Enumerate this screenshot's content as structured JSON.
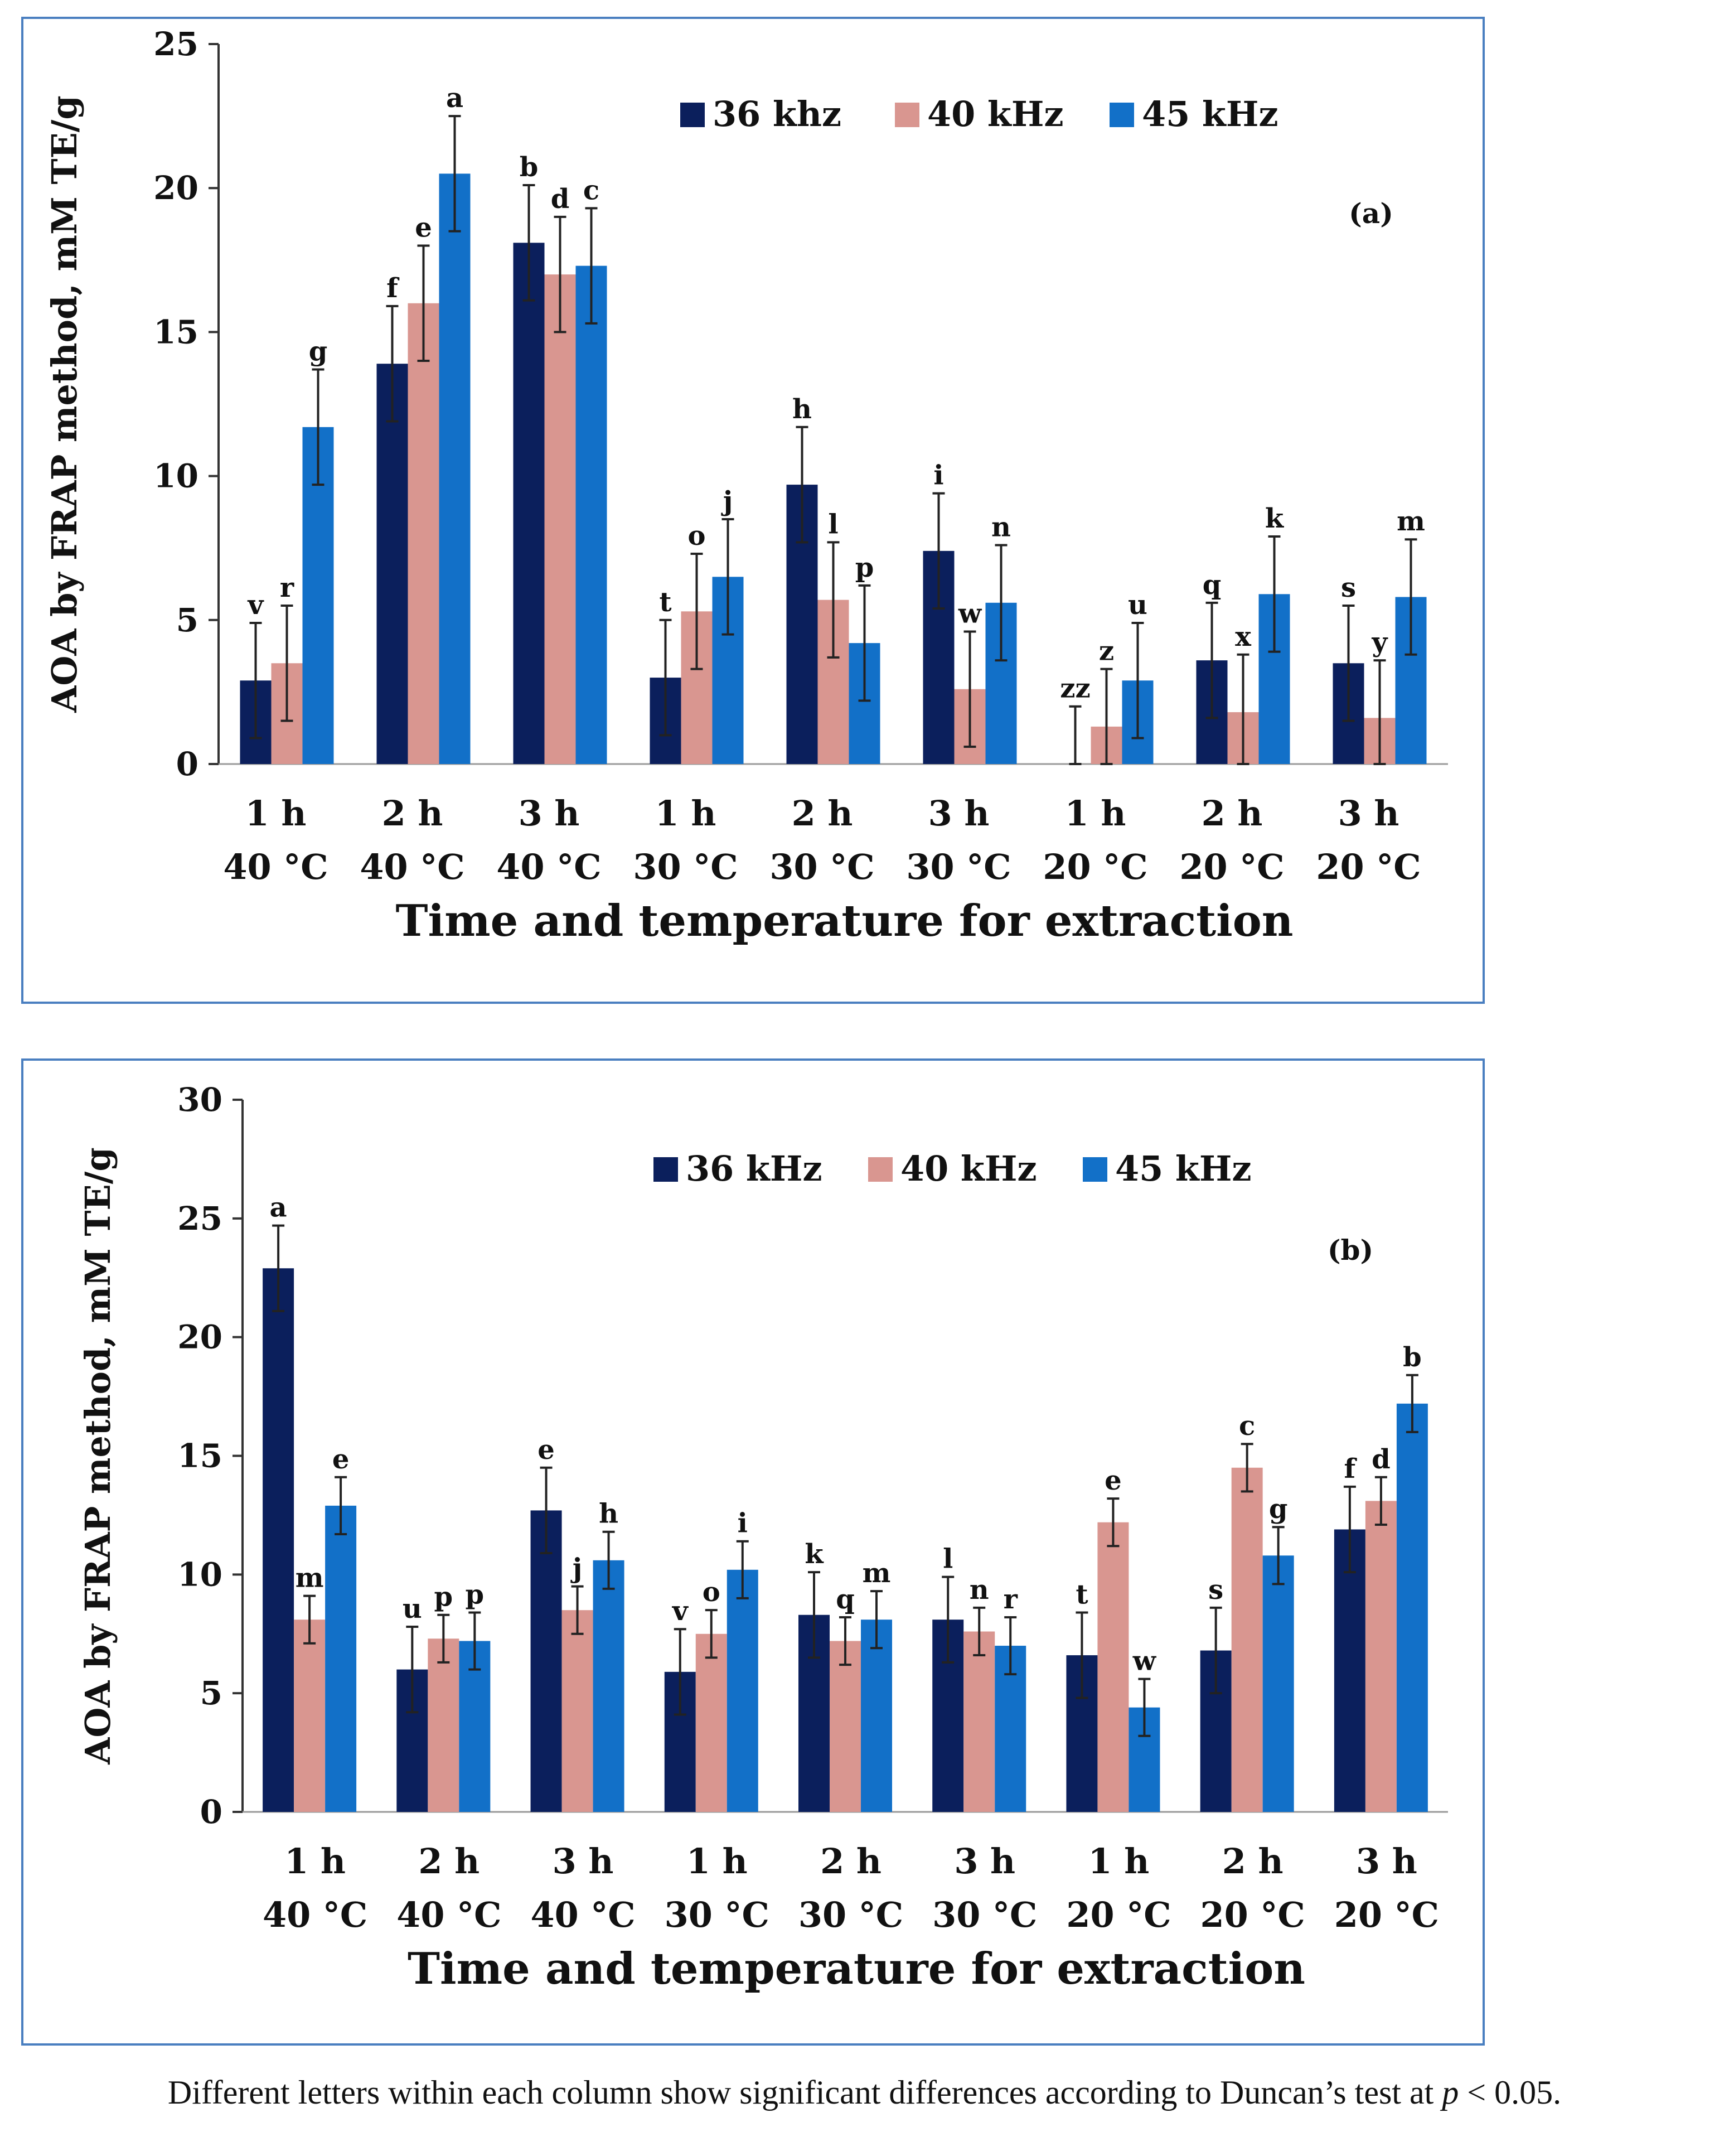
{
  "colors": {
    "s36": "#0b1f5c",
    "s40": "#d99690",
    "s45": "#1270c8",
    "frame": "#4a7fc0"
  },
  "categories": [
    {
      "time": "1 h",
      "temp": "40 °C"
    },
    {
      "time": "2 h",
      "temp": "40 °C"
    },
    {
      "time": "3 h",
      "temp": "40 °C"
    },
    {
      "time": "1 h",
      "temp": "30 °C"
    },
    {
      "time": "2 h",
      "temp": "30 °C"
    },
    {
      "time": "3 h",
      "temp": "30 °C"
    },
    {
      "time": "1 h",
      "temp": "20 °C"
    },
    {
      "time": "2 h",
      "temp": "20 °C"
    },
    {
      "time": "3 h",
      "temp": "20 °C"
    }
  ],
  "chart_data": [
    {
      "type": "bar",
      "panel_label": "(a)",
      "xlabel": "Time and temperature for extraction",
      "ylabel": "AOA by FRAP method, mM TE/g",
      "ylim": [
        0,
        25
      ],
      "yticks": [
        0,
        5,
        10,
        15,
        20,
        25
      ],
      "legend_position": "top-right",
      "series": [
        {
          "name": "36 khz",
          "values": [
            2.9,
            13.9,
            18.1,
            3.0,
            9.7,
            7.4,
            0.0,
            3.6,
            3.5
          ],
          "errors": [
            2.0,
            2.0,
            2.0,
            2.0,
            2.0,
            2.0,
            2.0,
            2.0,
            2.0
          ],
          "letters": [
            "v",
            "f",
            "b",
            "t",
            "h",
            "i",
            "zz",
            "q",
            "s"
          ]
        },
        {
          "name": "40 kHz",
          "values": [
            3.5,
            16.0,
            17.0,
            5.3,
            5.7,
            2.6,
            1.3,
            1.8,
            1.6
          ],
          "errors": [
            2.0,
            2.0,
            2.0,
            2.0,
            2.0,
            2.0,
            2.0,
            2.0,
            2.0
          ],
          "letters": [
            "r",
            "e",
            "d",
            "o",
            "l",
            "w",
            "z",
            "x",
            "y"
          ]
        },
        {
          "name": "45 kHz",
          "values": [
            11.7,
            20.5,
            17.3,
            6.5,
            4.2,
            5.6,
            2.9,
            5.9,
            5.8
          ],
          "errors": [
            2.0,
            2.0,
            2.0,
            2.0,
            2.0,
            2.0,
            2.0,
            2.0,
            2.0
          ],
          "letters": [
            "g",
            "a",
            "c",
            "j",
            "p",
            "n",
            "u",
            "k",
            "m"
          ]
        }
      ]
    },
    {
      "type": "bar",
      "panel_label": "(b)",
      "xlabel": "Time and temperature for extraction",
      "ylabel": "AOA by FRAP method, mM TE/g",
      "ylim": [
        0,
        30
      ],
      "yticks": [
        0,
        5,
        10,
        15,
        20,
        25,
        30
      ],
      "legend_position": "top-right",
      "series": [
        {
          "name": "36 kHz",
          "values": [
            22.9,
            6.0,
            12.7,
            5.9,
            8.3,
            8.1,
            6.6,
            6.8,
            11.9
          ],
          "errors": [
            1.8,
            1.8,
            1.8,
            1.8,
            1.8,
            1.8,
            1.8,
            1.8,
            1.8
          ],
          "letters": [
            "a",
            "u",
            "e",
            "v",
            "k",
            "l",
            "t",
            "s",
            "f"
          ]
        },
        {
          "name": "40 kHz",
          "values": [
            8.1,
            7.3,
            8.5,
            7.5,
            7.2,
            7.6,
            12.2,
            14.5,
            13.1
          ],
          "errors": [
            1.0,
            1.0,
            1.0,
            1.0,
            1.0,
            1.0,
            1.0,
            1.0,
            1.0
          ],
          "letters": [
            "m",
            "p",
            "j",
            "o",
            "q",
            "n",
            "e",
            "c",
            "d"
          ]
        },
        {
          "name": "45 kHz",
          "values": [
            12.9,
            7.2,
            10.6,
            10.2,
            8.1,
            7.0,
            4.4,
            10.8,
            17.2
          ],
          "errors": [
            1.2,
            1.2,
            1.2,
            1.2,
            1.2,
            1.2,
            1.2,
            1.2,
            1.2
          ],
          "letters": [
            "e",
            "p",
            "h",
            "i",
            "m",
            "r",
            "w",
            "g",
            "b"
          ]
        }
      ]
    }
  ],
  "caption": {
    "text": "Different letters within each column show significant differences according to Duncan’s test at ",
    "p_symbol": "p",
    "threshold": " < 0.05."
  }
}
